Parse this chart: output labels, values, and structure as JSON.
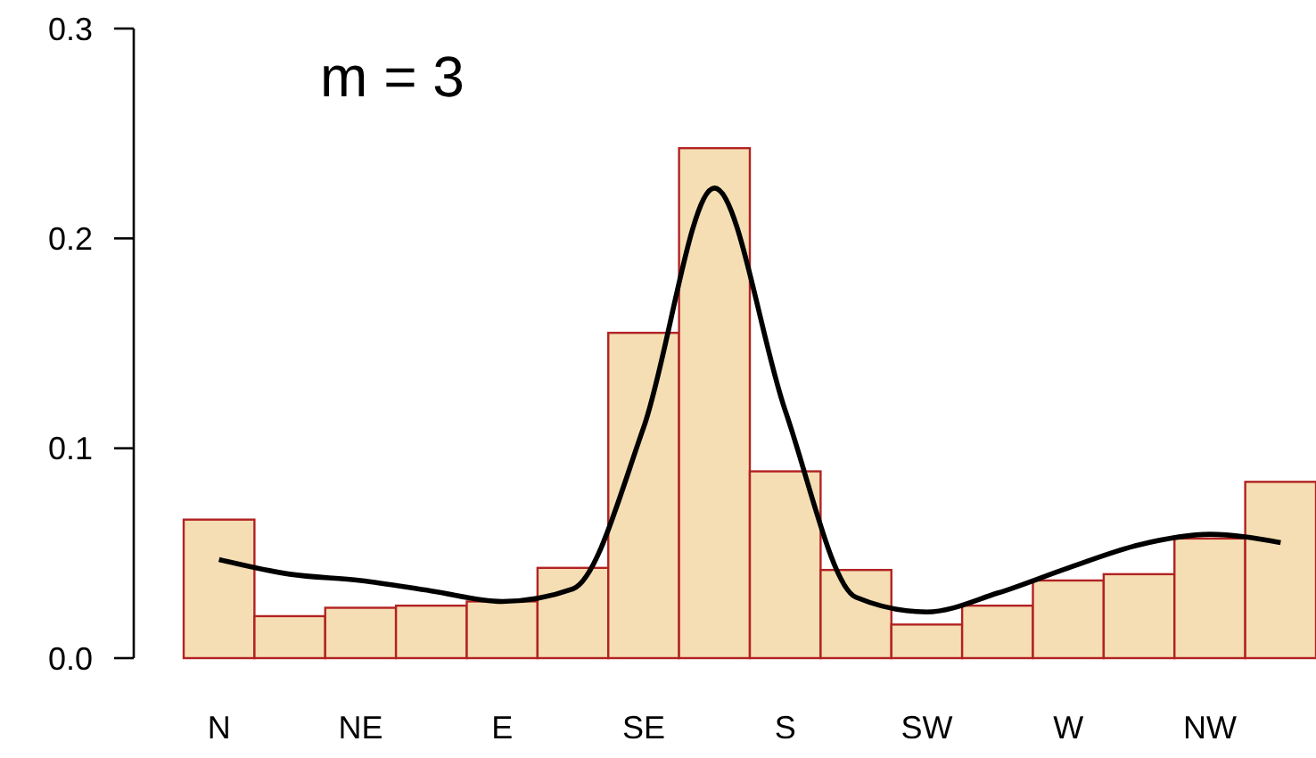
{
  "chart_data": {
    "type": "bar",
    "categories": [
      "N",
      null,
      "NE",
      null,
      "E",
      null,
      "SE",
      null,
      "S",
      null,
      "SW",
      null,
      "W",
      null,
      "NW",
      null
    ],
    "series": [
      {
        "color": "#f5deb3",
        "values": [
          0.066,
          0.02,
          0.024,
          0.025,
          0.027,
          0.043,
          0.155,
          0.243,
          0.089,
          0.042,
          0.016,
          0.025,
          0.037,
          0.04,
          0.057,
          0.084
        ]
      },
      {
        "type": "line",
        "color": "#000000",
        "values": [
          0.047,
          0.04,
          0.037,
          0.032,
          0.027,
          0.033,
          0.11,
          0.224,
          0.118,
          0.029,
          0.022,
          0.031,
          0.043,
          0.054,
          0.059,
          0.055
        ]
      }
    ],
    "ylim": [
      0,
      0.3
    ],
    "yticks": [
      {
        "value": 0,
        "label": "0.0"
      },
      {
        "value": 0.1,
        "label": "0.1"
      },
      {
        "value": 0.2,
        "label": "0.2"
      },
      {
        "value": 0.3,
        "label": "0.3"
      }
    ],
    "annotations": [
      "m = 3"
    ]
  }
}
